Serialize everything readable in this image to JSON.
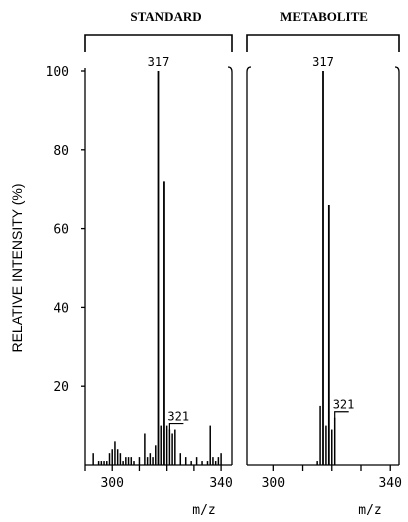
{
  "chart_data": [
    {
      "type": "bar",
      "title": "STANDARD",
      "ylabel": "RELATIVE INTENSITY (%)",
      "xlabel": "m/z",
      "xlim": [
        290,
        344
      ],
      "ylim": [
        0,
        100
      ],
      "x_ticks": [
        300,
        340
      ],
      "y_ticks": [
        20,
        40,
        60,
        80,
        100
      ],
      "peak_labels": [
        {
          "x": 317,
          "text": "317",
          "bracket": false
        },
        {
          "x": 321,
          "text": "321",
          "bracket": true
        }
      ],
      "x": [
        293,
        295,
        296,
        297,
        298,
        299,
        300,
        301,
        302,
        303,
        304,
        305,
        306,
        307,
        308,
        310,
        312,
        313,
        314,
        315,
        316,
        317,
        318,
        319,
        320,
        321,
        322,
        323,
        325,
        327,
        329,
        331,
        333,
        335,
        336,
        337,
        338,
        339,
        340
      ],
      "values": [
        3,
        1,
        1,
        1,
        1,
        3,
        4,
        6,
        4,
        3,
        1,
        2,
        2,
        2,
        1,
        2,
        8,
        2,
        3,
        2,
        5,
        100,
        10,
        72,
        10,
        9,
        8,
        9,
        3,
        2,
        1,
        2,
        1,
        1,
        10,
        2,
        1,
        2,
        3
      ]
    },
    {
      "type": "bar",
      "title": "METABOLITE",
      "xlabel": "m/z",
      "xlim": [
        291,
        343
      ],
      "x_ticks": [
        300,
        340
      ],
      "peak_labels": [
        {
          "x": 317,
          "text": "317",
          "bracket": false
        },
        {
          "x": 321,
          "text": "321",
          "bracket": true
        }
      ],
      "x": [
        315,
        316,
        317,
        318,
        319,
        320,
        321
      ],
      "values": [
        1,
        15,
        100,
        10,
        66,
        9,
        12
      ]
    }
  ]
}
